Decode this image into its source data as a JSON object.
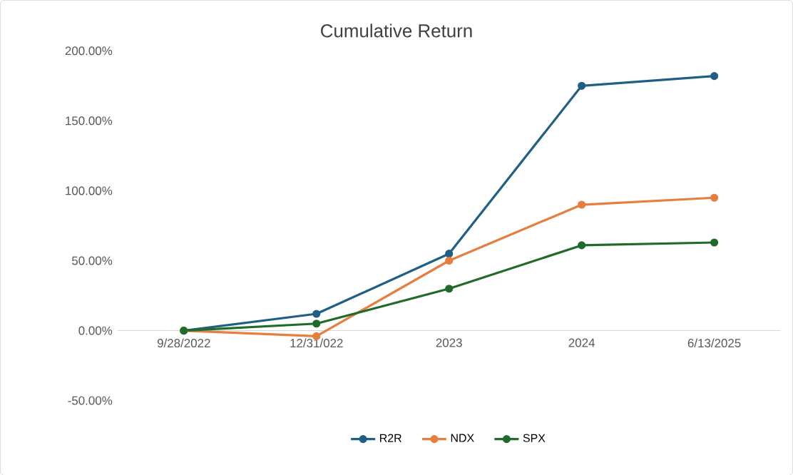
{
  "chart_data": {
    "type": "line",
    "title": "Cumulative Return",
    "categories": [
      "9/28/2022",
      "12/31/022",
      "2023",
      "2024",
      "6/13/2025"
    ],
    "series": [
      {
        "name": "R2R",
        "color": "#1f5f84",
        "values": [
          0,
          12,
          55,
          175,
          182
        ]
      },
      {
        "name": "NDX",
        "color": "#e57e3f",
        "values": [
          0,
          -4,
          50,
          90,
          95
        ]
      },
      {
        "name": "SPX",
        "color": "#1f6b29",
        "values": [
          0,
          5,
          30,
          61,
          63
        ]
      }
    ],
    "ylim": [
      -50,
      200
    ],
    "yticks": [
      {
        "value": -50,
        "label": "-50.00%"
      },
      {
        "value": 0,
        "label": "0.00%"
      },
      {
        "value": 50,
        "label": "50.00%"
      },
      {
        "value": 100,
        "label": "100.00%"
      },
      {
        "value": 150,
        "label": "150.00%"
      },
      {
        "value": 200,
        "label": "200.00%"
      }
    ],
    "legend": "bottom",
    "marker": "circle",
    "line_style": "solid",
    "grid": false
  }
}
